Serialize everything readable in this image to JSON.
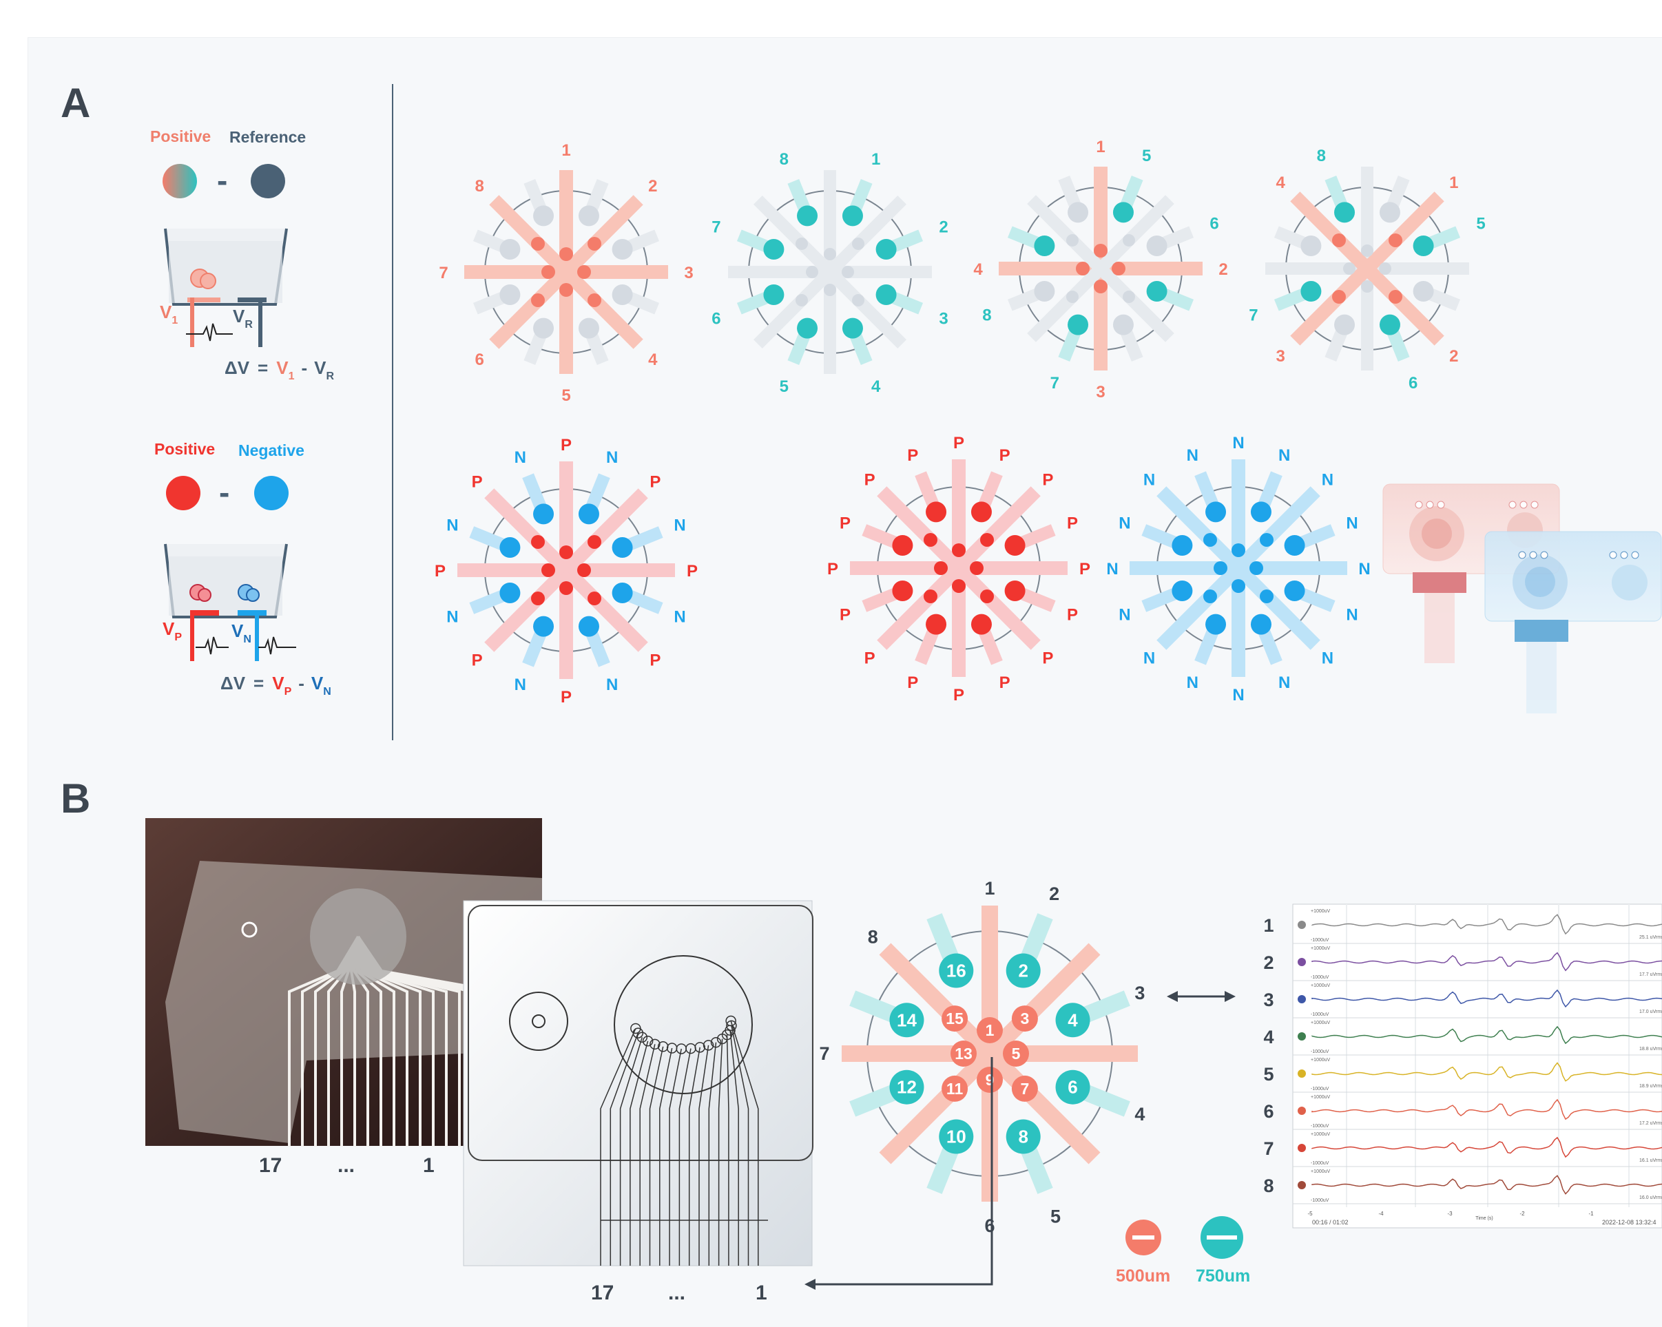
{
  "panel_a": {
    "label": "A",
    "legend_top": {
      "positive": "Positive",
      "reference": "Reference",
      "minus": "-"
    },
    "legend_bottom": {
      "positive": "Positive",
      "negative": "Negative",
      "minus": "-"
    },
    "eq_top": {
      "lhs": "ΔV",
      "eq": "=",
      "a": "V",
      "a_sub": "1",
      "minus": "-",
      "b": "V",
      "b_sub": "R"
    },
    "eq_bottom": {
      "lhs": "ΔV",
      "eq": "=",
      "a": "V",
      "a_sub": "P",
      "minus": "-",
      "b": "V",
      "b_sub": "N"
    },
    "top_labels": {
      "v1": "V",
      "v1_sub": "1",
      "vr": "V",
      "vr_sub": "R"
    },
    "bottom_labels": {
      "vp": "V",
      "vp_sub": "P",
      "vn": "V",
      "vn_sub": "N"
    },
    "config1": {
      "labels": [
        "1",
        "2",
        "3",
        "4",
        "5",
        "6",
        "7",
        "8"
      ]
    },
    "config2": {
      "labels": [
        "1",
        "2",
        "3",
        "4",
        "5",
        "6",
        "7",
        "8"
      ]
    },
    "config3": {
      "labels": [
        "1",
        "2",
        "3",
        "4",
        "5",
        "6",
        "7",
        "8"
      ]
    },
    "config4": {
      "labels": [
        "1",
        "2",
        "3",
        "4",
        "5",
        "6",
        "7",
        "8"
      ]
    },
    "pn_p": "P",
    "pn_n": "N"
  },
  "panel_b": {
    "label": "B",
    "photo_labels": {
      "left": "17",
      "dots": "...",
      "right": "1"
    },
    "schematic_labels": {
      "left": "17",
      "dots": "...",
      "right": "1"
    },
    "channel_labels": [
      "1",
      "2",
      "3",
      "4",
      "5",
      "6",
      "7",
      "8"
    ],
    "electrode_numbers": [
      "1",
      "2",
      "3",
      "4",
      "5",
      "6",
      "7",
      "8",
      "9",
      "10",
      "11",
      "12",
      "13",
      "14",
      "15",
      "16"
    ],
    "size_legend": {
      "small": "500um",
      "large": "750um"
    },
    "traces": {
      "rows": [
        "1",
        "2",
        "3",
        "4",
        "5",
        "6",
        "7",
        "8"
      ],
      "scale_top": "+1000uV",
      "scale_bottom": "-1000uV",
      "rms": [
        "25.1 uVrms",
        "17.7 uVrms",
        "17.0 uVrms",
        "18.8 uVrms",
        "18.9 uVrms",
        "17.2 uVrms",
        "16.1 uVrms",
        "16.0 uVrms"
      ],
      "x_ticks": [
        "-5",
        "-4",
        "-3",
        "-2",
        "-1"
      ],
      "x_label": "Time (s)",
      "footer_left": "00:16 / 01:02",
      "footer_right": "2022-12-08 13:32:4",
      "colors": [
        "#8a8a8a",
        "#7b4fa0",
        "#3e57a8",
        "#3e7f4f",
        "#d8b326",
        "#e0614a",
        "#d64638",
        "#a04a3a"
      ]
    }
  },
  "colors": {
    "salmon": "#f47c6a",
    "teal": "#2cc2c0",
    "gray": "#d9dee4",
    "slate": "#4a6175",
    "red": "#f0352f",
    "blue": "#1ea4ea"
  }
}
